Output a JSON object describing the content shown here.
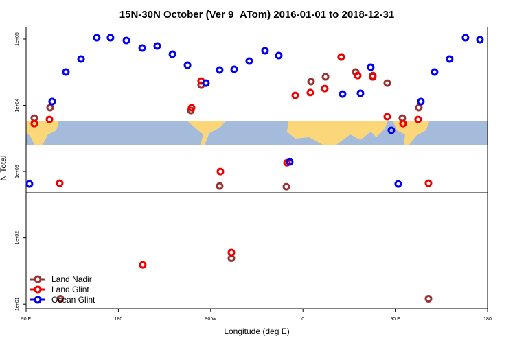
{
  "chart_data": {
    "type": "scatter",
    "title": "15N-30N October (Ver 9_ATom)   2016-01-01 to 2018-12-31",
    "xlabel": "Longitude (deg E)",
    "ylabel": "N Total",
    "xlim": [
      90,
      540
    ],
    "ylim": [
      8.5,
      150000
    ],
    "log_y": true,
    "legend": "bottomleft",
    "xticks": [
      {
        "value": 90,
        "label": "90 E"
      },
      {
        "value": 180,
        "label": "180"
      },
      {
        "value": 270,
        "label": "90 W"
      },
      {
        "value": 360,
        "label": "0"
      },
      {
        "value": 450,
        "label": "90 E"
      },
      {
        "value": 540,
        "label": "180"
      }
    ],
    "yticks": [
      {
        "value": 10,
        "label": "1e+01"
      },
      {
        "value": 100,
        "label": "1e+02"
      },
      {
        "value": 1000,
        "label": "1e+03"
      },
      {
        "value": 10000,
        "label": "1e+04"
      },
      {
        "value": 100000,
        "label": "1e+05"
      }
    ],
    "series": [
      {
        "name": "Land Nadir",
        "color": "#993333",
        "x": [
          98.0,
          113.4,
          123.5,
          250.7,
          260.7,
          278.8,
          290.2,
          343.8,
          367.9,
          382.0,
          397.3,
          411.4,
          428.1,
          442.2,
          456.9,
          473.0,
          482.4
        ],
        "values": [
          6430,
          9200,
          12,
          8360,
          20200,
          605,
          49,
          591,
          22800,
          26900,
          53800,
          31800,
          28200,
          21700,
          6430,
          9200,
          12
        ]
      },
      {
        "name": "Land Glint",
        "color": "#ee0000",
        "x": [
          98.0,
          112.8,
          122.8,
          203.8,
          251.4,
          260.7,
          279.5,
          290.2,
          344.5,
          352.5,
          367.2,
          381.3,
          397.3,
          413.4,
          428.1,
          442.2,
          457.6,
          472.3,
          482.4
        ],
        "values": [
          5310,
          6130,
          667,
          39,
          9200,
          23300,
          1000,
          60,
          1360,
          14100,
          15600,
          17900,
          53800,
          28200,
          26900,
          6750,
          5310,
          6130,
          667
        ]
      },
      {
        "name": "Ocean Glint",
        "color": "#0000ee",
        "x": [
          93.3,
          115.4,
          128.8,
          143.6,
          158.9,
          172.3,
          187.8,
          203.2,
          217.9,
          232.7,
          247.4,
          265.4,
          278.8,
          292.9,
          307.6,
          323.0,
          336.4,
          347.1,
          398.7,
          416.1,
          426.1,
          446.2,
          452.9,
          475.0,
          488.4,
          503.1,
          518.5,
          532.6
        ],
        "values": [
          650,
          11400,
          31800,
          50100,
          105000,
          105000,
          95300,
          73300,
          78700,
          59200,
          40400,
          21700,
          34200,
          35000,
          46600,
          66700,
          56400,
          1400,
          14800,
          15200,
          37600,
          4190,
          650,
          11400,
          31800,
          50100,
          105000,
          97700
        ]
      }
    ]
  }
}
